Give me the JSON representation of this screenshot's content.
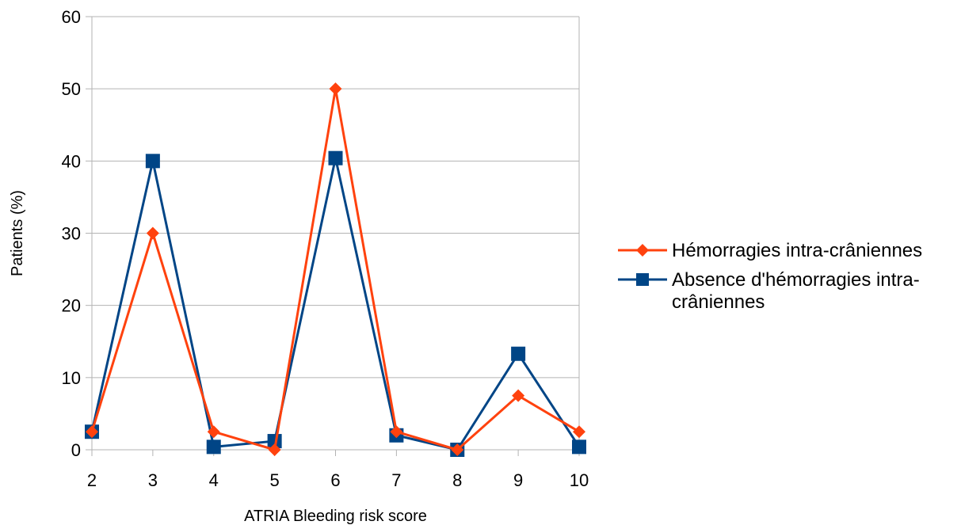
{
  "chart_data": {
    "type": "line",
    "x": [
      2,
      3,
      4,
      5,
      6,
      7,
      8,
      9,
      10
    ],
    "xlabel": "ATRIA Bleeding risk score",
    "ylabel": "Patients (%)",
    "ylim": [
      0,
      60
    ],
    "yticks": [
      0,
      10,
      20,
      30,
      40,
      50,
      60
    ],
    "grid": true,
    "legend_position": "right",
    "series": [
      {
        "name": "Hémorragies intra-crâniennes",
        "name_lines": [
          "Hémorragies intra-crâniennes"
        ],
        "color": "#ff420e",
        "marker": "diamond",
        "values": [
          2.5,
          30,
          2.5,
          0,
          50,
          2.5,
          0,
          7.5,
          2.5
        ]
      },
      {
        "name": "Absence d'hémorragies intra-crâniennes",
        "name_lines": [
          "Absence d'hémorragies intra-",
          "crâniennes"
        ],
        "color": "#004586",
        "marker": "square",
        "values": [
          2.5,
          40,
          0.4,
          1.2,
          40.4,
          2,
          0,
          13.3,
          0.4
        ]
      }
    ]
  }
}
